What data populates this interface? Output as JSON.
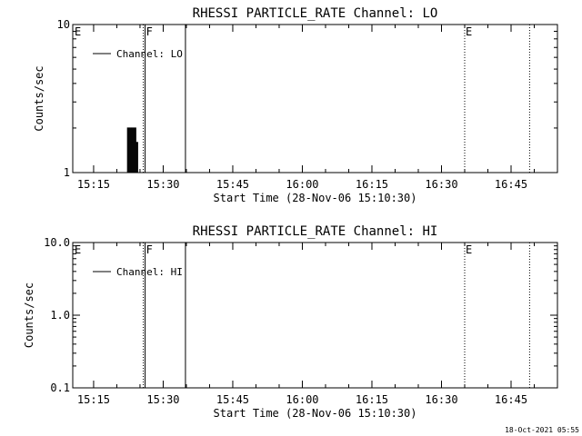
{
  "footer": {
    "timestamp": "18-Oct-2021 05:55"
  },
  "chart_data": [
    {
      "type": "line",
      "title": "RHESSI PARTICLE_RATE Channel: LO",
      "xlabel": "Start Time (28-Nov-06 15:10:30)",
      "ylabel": "Counts/sec",
      "x_unit": "minutes after 15:10:30",
      "xlim": [
        0,
        104.5
      ],
      "ylim": [
        1,
        10
      ],
      "yscale": "log",
      "x_ticks": [
        {
          "value": 4.5,
          "label": "15:15"
        },
        {
          "value": 19.5,
          "label": "15:30"
        },
        {
          "value": 34.5,
          "label": "15:45"
        },
        {
          "value": 49.5,
          "label": "16:00"
        },
        {
          "value": 64.5,
          "label": "16:15"
        },
        {
          "value": 79.5,
          "label": "16:30"
        },
        {
          "value": 94.5,
          "label": "16:45"
        }
      ],
      "y_ticks": [
        {
          "value": 1,
          "label": "1"
        },
        {
          "value": 10,
          "label": "10"
        }
      ],
      "series": [
        {
          "name": "Channel: LO",
          "x": [
            11.7,
            11.9,
            12.1,
            12.3,
            12.5,
            12.7,
            12.9,
            13.1,
            13.3,
            13.5,
            13.7,
            13.9,
            14.1
          ],
          "y": [
            1,
            2,
            1,
            2,
            1,
            2,
            1,
            2,
            1,
            2,
            1,
            1.6,
            1
          ]
        }
      ],
      "legend": {
        "position": "top-left",
        "entries": [
          "Channel: LO"
        ]
      },
      "markers": [
        {
          "x": 15.2,
          "style": "dotted",
          "label": ""
        },
        {
          "x": 15.6,
          "style": "solid",
          "label": ""
        },
        {
          "x": 24.3,
          "style": "solid",
          "label": ""
        },
        {
          "x": 84.5,
          "style": "dotted",
          "label": ""
        },
        {
          "x": 98.5,
          "style": "dotted",
          "label": ""
        }
      ],
      "annotations": [
        {
          "text": "E",
          "x": 0.2
        },
        {
          "text": "F",
          "x": 15.6
        },
        {
          "text": "E",
          "x": 84.5
        }
      ]
    },
    {
      "type": "line",
      "title": "RHESSI PARTICLE_RATE Channel: HI",
      "xlabel": "Start Time (28-Nov-06 15:10:30)",
      "ylabel": "Counts/sec",
      "x_unit": "minutes after 15:10:30",
      "xlim": [
        0,
        104.5
      ],
      "ylim": [
        0.1,
        10
      ],
      "yscale": "log",
      "x_ticks": [
        {
          "value": 4.5,
          "label": "15:15"
        },
        {
          "value": 19.5,
          "label": "15:30"
        },
        {
          "value": 34.5,
          "label": "15:45"
        },
        {
          "value": 49.5,
          "label": "16:00"
        },
        {
          "value": 64.5,
          "label": "16:15"
        },
        {
          "value": 79.5,
          "label": "16:30"
        },
        {
          "value": 94.5,
          "label": "16:45"
        }
      ],
      "y_ticks": [
        {
          "value": 0.1,
          "label": "0.1"
        },
        {
          "value": 1,
          "label": "1.0"
        },
        {
          "value": 10,
          "label": "10.0"
        }
      ],
      "series": [
        {
          "name": "Channel: HI",
          "x": [],
          "y": []
        }
      ],
      "legend": {
        "position": "top-left",
        "entries": [
          "Channel: HI"
        ]
      },
      "markers": [
        {
          "x": 15.2,
          "style": "dotted",
          "label": ""
        },
        {
          "x": 15.6,
          "style": "solid",
          "label": ""
        },
        {
          "x": 24.3,
          "style": "solid",
          "label": ""
        },
        {
          "x": 84.5,
          "style": "dotted",
          "label": ""
        },
        {
          "x": 98.5,
          "style": "dotted",
          "label": ""
        }
      ],
      "annotations": [
        {
          "text": "E",
          "x": 0.2
        },
        {
          "text": "F",
          "x": 15.6
        },
        {
          "text": "E",
          "x": 84.5
        }
      ]
    }
  ]
}
